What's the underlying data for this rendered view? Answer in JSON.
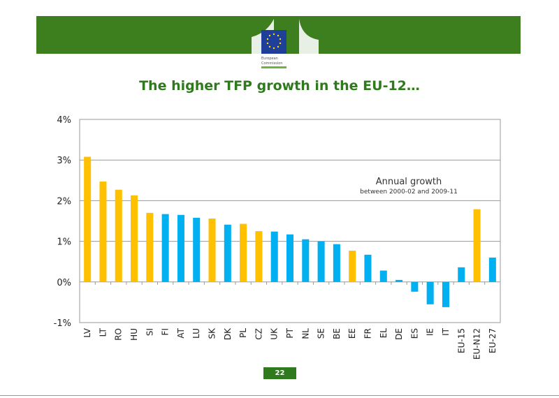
{
  "header": {
    "logo_text": "European Commission"
  },
  "slide": {
    "title": "The higher TFP growth in the EU-12…",
    "page_number": "22"
  },
  "colors": {
    "eu12": "#FFC000",
    "eu15": "#00B0F0",
    "brand_green": "#3D7F1F"
  },
  "chart_data": {
    "type": "bar",
    "annotation": {
      "title": "Annual growth",
      "subtitle": "between 2000-02 and 2009-11"
    },
    "categories": [
      "LV",
      "LT",
      "RO",
      "HU",
      "SI",
      "FI",
      "AT",
      "LU",
      "SK",
      "DK",
      "PL",
      "CZ",
      "UK",
      "PT",
      "NL",
      "SE",
      "BE",
      "EE",
      "FR",
      "EL",
      "DE",
      "ES",
      "IE",
      "IT",
      "EU-15",
      "EU-N12",
      "EU-27"
    ],
    "values": [
      3.08,
      2.47,
      2.27,
      2.13,
      1.7,
      1.67,
      1.65,
      1.58,
      1.56,
      1.41,
      1.43,
      1.25,
      1.24,
      1.17,
      1.05,
      1.0,
      0.93,
      0.77,
      0.67,
      0.28,
      0.05,
      -0.24,
      -0.55,
      -0.62,
      0.36,
      1.79,
      0.6
    ],
    "bar_group": [
      "eu12",
      "eu12",
      "eu12",
      "eu12",
      "eu12",
      "eu15",
      "eu15",
      "eu15",
      "eu12",
      "eu15",
      "eu12",
      "eu12",
      "eu15",
      "eu15",
      "eu15",
      "eu15",
      "eu15",
      "eu12",
      "eu15",
      "eu15",
      "eu15",
      "eu15",
      "eu15",
      "eu15",
      "eu15",
      "eu12",
      "eu15"
    ],
    "ylim": [
      -1,
      4
    ],
    "yticks": [
      "-1%",
      "0%",
      "1%",
      "2%",
      "3%",
      "4%"
    ],
    "ytick_values": [
      -1,
      0,
      1,
      2,
      3,
      4
    ],
    "grid": true,
    "xlabel": "",
    "ylabel": "",
    "title": ""
  }
}
